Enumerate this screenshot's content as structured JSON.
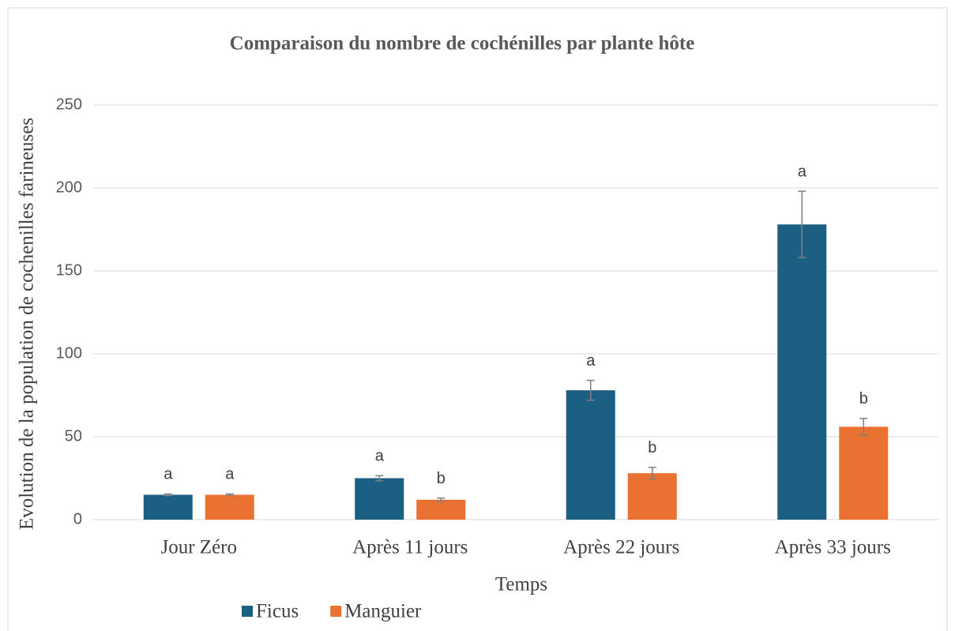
{
  "chart_data": {
    "type": "bar",
    "title": "Comparaison du nombre de cochénilles par plante hôte",
    "x_label": "Temps",
    "y_label": "Evolution de  la  population de cochenilles farineuses",
    "categories": [
      "Jour Zéro",
      "Après 11 jours",
      "Après 22 jours",
      "Après 33 jours"
    ],
    "series": [
      {
        "name": "Ficus",
        "color": "#1b5f82",
        "values": [
          15,
          25,
          78,
          178
        ],
        "errors": [
          0.5,
          1.5,
          6,
          20
        ],
        "letters": [
          "a",
          "a",
          "a",
          "a"
        ]
      },
      {
        "name": "Manguier",
        "color": "#e97132",
        "values": [
          15,
          12,
          28,
          56
        ],
        "errors": [
          0.5,
          1,
          3.5,
          5
        ],
        "letters": [
          "a",
          "b",
          "b",
          "b"
        ]
      }
    ],
    "ylim": [
      0,
      250
    ],
    "yticks": [
      0,
      50,
      100,
      150,
      200,
      250
    ],
    "grid": true,
    "legend": "bottom"
  }
}
